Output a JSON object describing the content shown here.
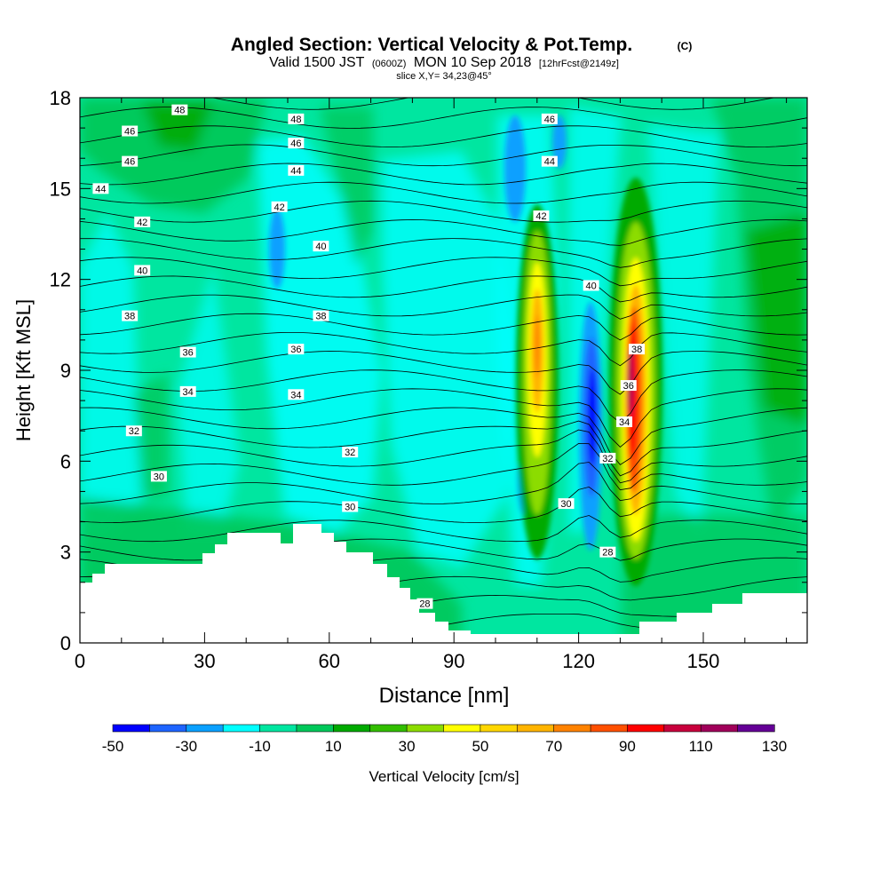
{
  "header": {
    "title": "Angled Section: Vertical Velocity & Pot.Temp.",
    "title_unit": "(C)",
    "valid_prefix": "Valid 1500 JST",
    "valid_utc": "(0600Z)",
    "valid_date": "MON 10 Sep 2018",
    "forecast": "[12hrFcst@2149z]",
    "slice": "slice X,Y= 34,23@45°"
  },
  "chart_data": {
    "type": "heatmap",
    "xlabel": "Distance [nm]",
    "ylabel": "Height [Kft MSL]",
    "xlim": [
      0,
      175
    ],
    "ylim": [
      0,
      18
    ],
    "x_ticks": [
      0,
      30,
      60,
      90,
      120,
      150
    ],
    "y_ticks": [
      0,
      3,
      6,
      9,
      12,
      15,
      18
    ],
    "colorbar": {
      "label": "Vertical Velocity [cm/s]",
      "min": -50,
      "step": 10,
      "tick_labels": [
        "-50",
        "-30",
        "-10",
        "10",
        "30",
        "50",
        "70",
        "90",
        "110",
        "130"
      ],
      "colors": [
        "#0000ff",
        "#1e64ff",
        "#0aa0ff",
        "#00ffff",
        "#00e6a0",
        "#00c85a",
        "#00aa00",
        "#32be00",
        "#8cdc00",
        "#ffff00",
        "#ffd700",
        "#ffb400",
        "#ff8200",
        "#ff5000",
        "#ff0000",
        "#c8003c",
        "#a0005a",
        "#640096"
      ]
    },
    "theta_contour_labels": [
      {
        "x": 24,
        "y": 17.6,
        "text": "48"
      },
      {
        "x": 52,
        "y": 17.3,
        "text": "48"
      },
      {
        "x": 113,
        "y": 17.3,
        "text": "46"
      },
      {
        "x": 12,
        "y": 16.9,
        "text": "46"
      },
      {
        "x": 52,
        "y": 16.5,
        "text": "46"
      },
      {
        "x": 113,
        "y": 15.9,
        "text": "44"
      },
      {
        "x": 12,
        "y": 15.9,
        "text": "46"
      },
      {
        "x": 5,
        "y": 15.0,
        "text": "44"
      },
      {
        "x": 52,
        "y": 15.6,
        "text": "44"
      },
      {
        "x": 111,
        "y": 14.1,
        "text": "42"
      },
      {
        "x": 48,
        "y": 14.4,
        "text": "42"
      },
      {
        "x": 15,
        "y": 13.9,
        "text": "42"
      },
      {
        "x": 58,
        "y": 13.1,
        "text": "40"
      },
      {
        "x": 15,
        "y": 12.3,
        "text": "40"
      },
      {
        "x": 123,
        "y": 11.8,
        "text": "40"
      },
      {
        "x": 12,
        "y": 10.8,
        "text": "38"
      },
      {
        "x": 58,
        "y": 10.8,
        "text": "38"
      },
      {
        "x": 26,
        "y": 9.6,
        "text": "36"
      },
      {
        "x": 52,
        "y": 9.7,
        "text": "36"
      },
      {
        "x": 134,
        "y": 9.7,
        "text": "38"
      },
      {
        "x": 26,
        "y": 8.3,
        "text": "34"
      },
      {
        "x": 52,
        "y": 8.2,
        "text": "34"
      },
      {
        "x": 132,
        "y": 8.5,
        "text": "36"
      },
      {
        "x": 13,
        "y": 7.0,
        "text": "32"
      },
      {
        "x": 131,
        "y": 7.3,
        "text": "34"
      },
      {
        "x": 65,
        "y": 6.3,
        "text": "32"
      },
      {
        "x": 127,
        "y": 6.1,
        "text": "32"
      },
      {
        "x": 19,
        "y": 5.5,
        "text": "30"
      },
      {
        "x": 65,
        "y": 4.5,
        "text": "30"
      },
      {
        "x": 117,
        "y": 4.6,
        "text": "30"
      },
      {
        "x": 127,
        "y": 3.0,
        "text": "28"
      },
      {
        "x": 83,
        "y": 1.3,
        "text": "28"
      }
    ]
  }
}
